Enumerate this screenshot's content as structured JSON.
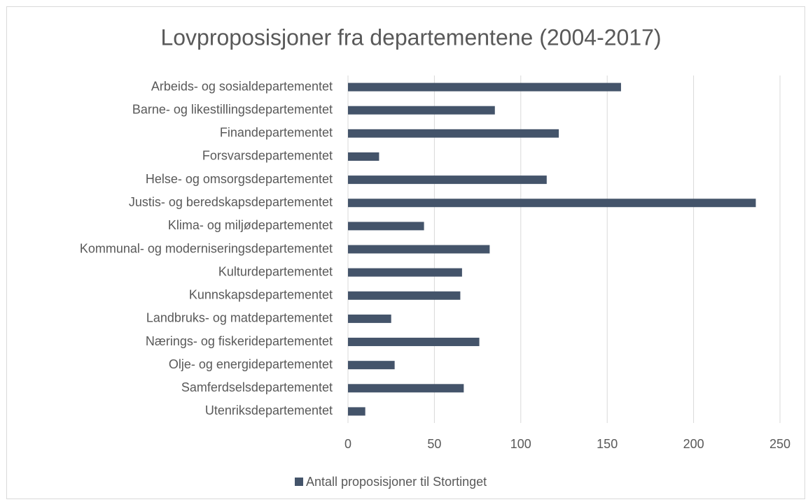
{
  "chart_data": {
    "type": "bar",
    "orientation": "horizontal",
    "title": "Lovproposisjoner fra departementene (2004-2017)",
    "categories": [
      "Arbeids- og sosialdepartementet",
      "Barne- og likestillingsdepartementet",
      "Finandepartementet",
      "Forsvarsdepartementet",
      "Helse- og omsorgsdepartementet",
      "Justis- og beredskapsdepartementet",
      "Klima- og miljødepartementet",
      "Kommunal- og moderniseringsdepartementet",
      "Kulturdepartementet",
      "Kunnskapsdepartementet",
      "Landbruks- og matdepartementet",
      "Nærings- og fiskeridepartementet",
      "Olje- og energidepartementet",
      "Samferdselsdepartementet",
      "Utenriksdepartementet"
    ],
    "series": [
      {
        "name": "Antall proposisjoner til Stortinget",
        "color": "#44546a",
        "values": [
          158,
          85,
          122,
          18,
          115,
          236,
          44,
          82,
          66,
          65,
          25,
          76,
          27,
          67,
          10
        ]
      }
    ],
    "xlim": [
      0,
      250
    ],
    "xticks": [
      0,
      50,
      100,
      150,
      200,
      250
    ],
    "grid": true,
    "legend": "bottom"
  }
}
